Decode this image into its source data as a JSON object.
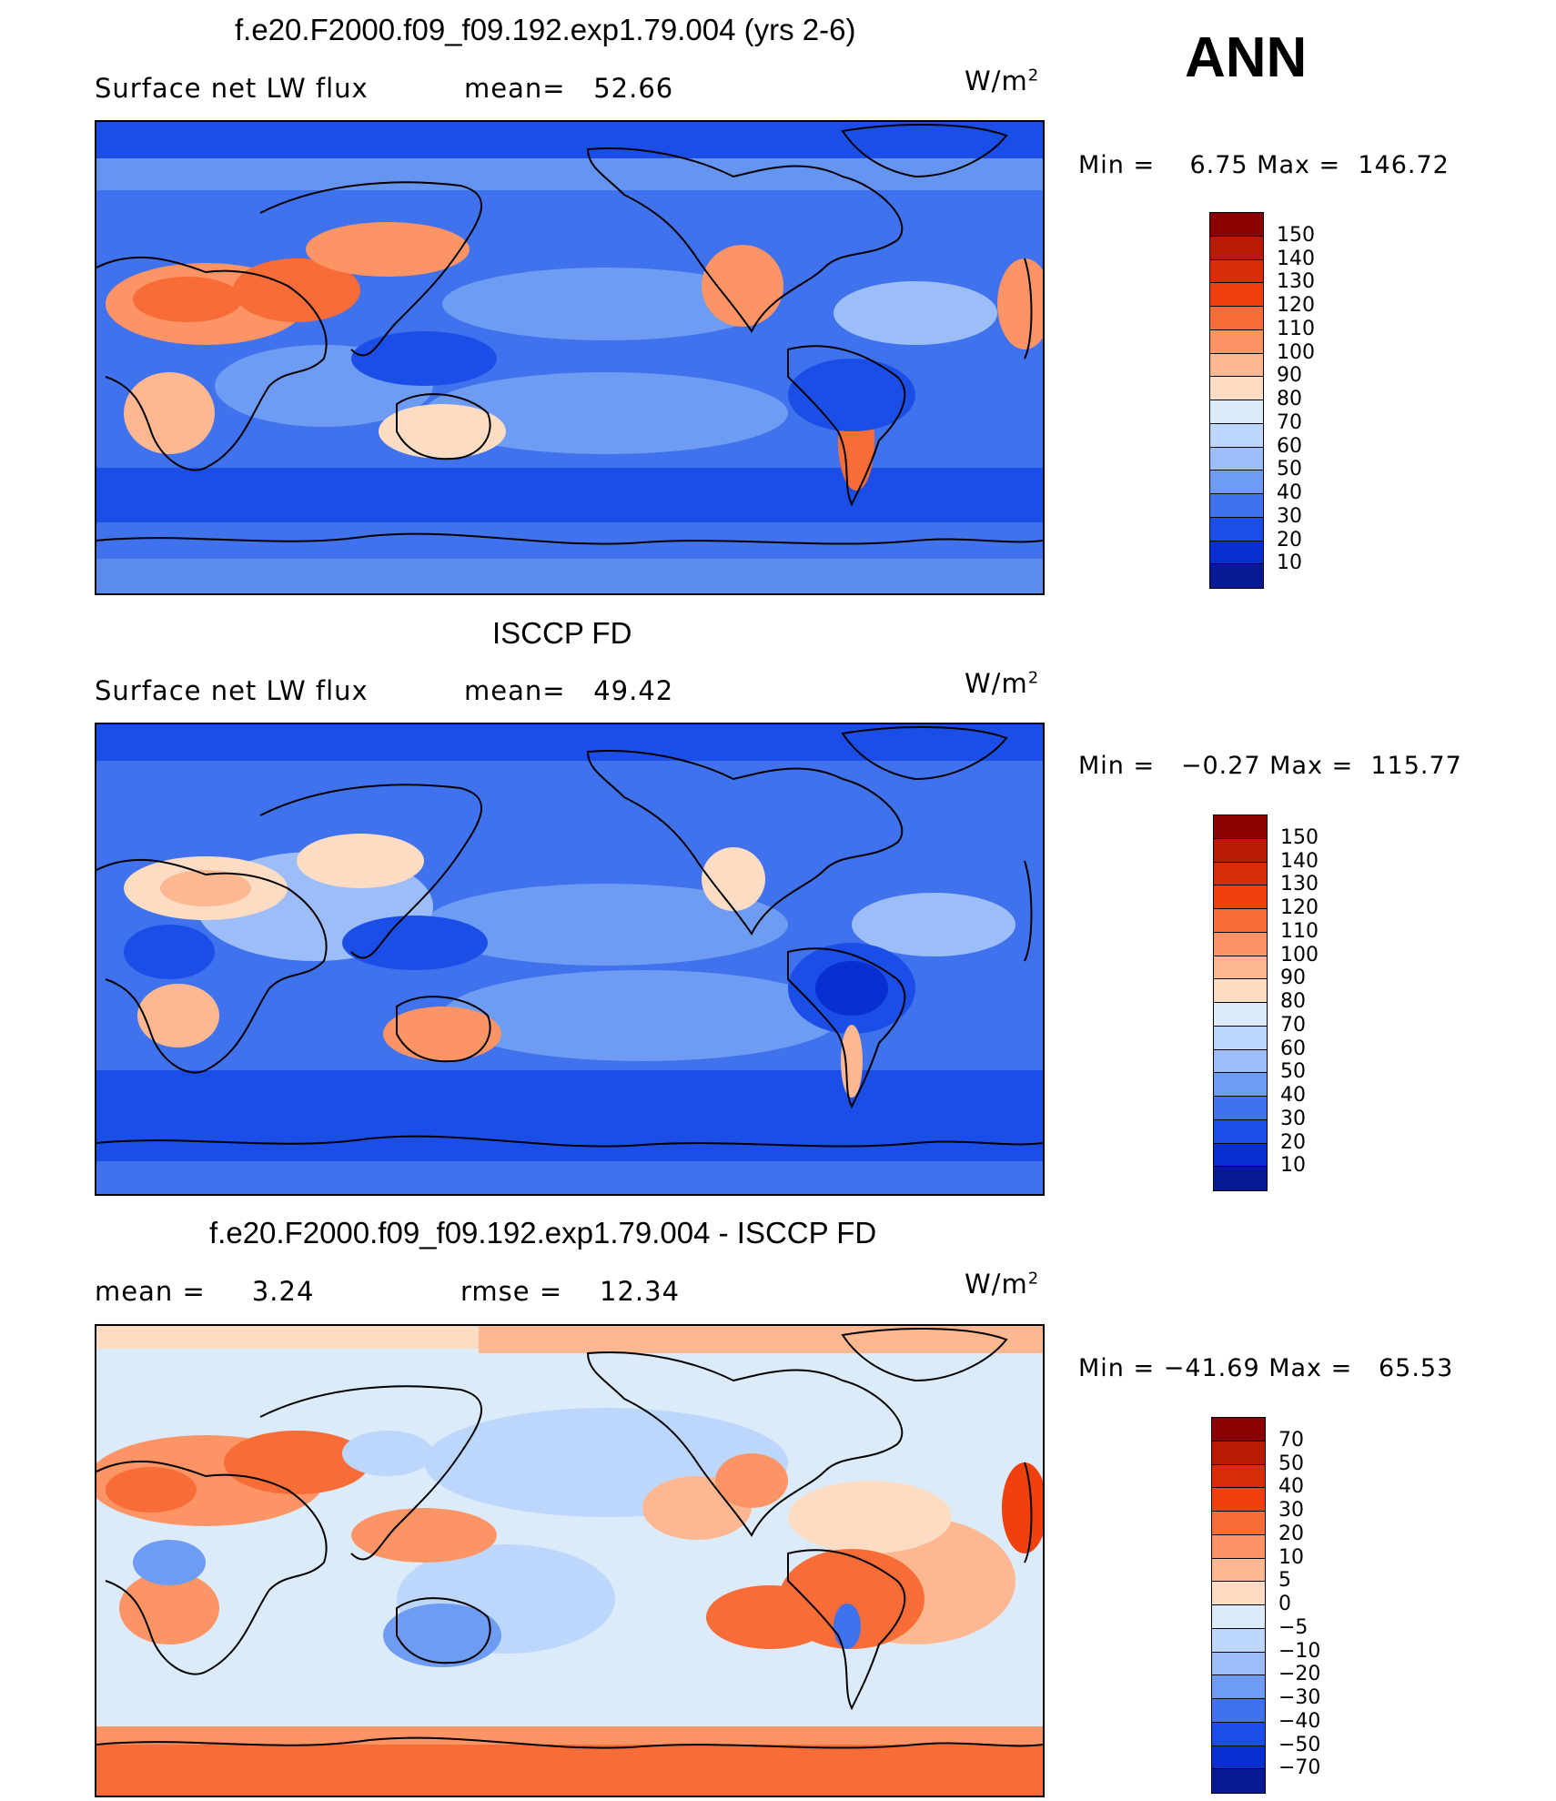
{
  "season": "ANN",
  "units": "W/m",
  "units_sup": "2",
  "panels": [
    {
      "title": "f.e20.F2000.f09_f09.192.exp1.79.004 (yrs 2-6)",
      "left_label": "Surface net LW flux",
      "mid_label": "mean=",
      "mid_value": "52.66",
      "stats": "Min =    6.75 Max =  146.72",
      "colorbar": [
        "150",
        "140",
        "130",
        "120",
        "110",
        "100",
        "90",
        "80",
        "70",
        "60",
        "50",
        "40",
        "30",
        "20",
        "10"
      ],
      "colors": [
        "#8b0000",
        "#b81b04",
        "#d72d07",
        "#f0400e",
        "#f86c38",
        "#fc9465",
        "#fdb892",
        "#fddcc4",
        "#dcebfa",
        "#bdd6fb",
        "#9cbdf7",
        "#6f9cf3",
        "#3f72ec",
        "#1b4ee6",
        "#0a2fd0",
        "#061a96"
      ]
    },
    {
      "title": "ISCCP FD",
      "left_label": "Surface net LW flux",
      "mid_label": "mean=",
      "mid_value": "49.42",
      "stats": "Min =   −0.27 Max =  115.77",
      "colorbar": [
        "150",
        "140",
        "130",
        "120",
        "110",
        "100",
        "90",
        "80",
        "70",
        "60",
        "50",
        "40",
        "30",
        "20",
        "10"
      ],
      "colors": [
        "#8b0000",
        "#b81b04",
        "#d72d07",
        "#f0400e",
        "#f86c38",
        "#fc9465",
        "#fdb892",
        "#fddcc4",
        "#dcebfa",
        "#bdd6fb",
        "#9cbdf7",
        "#6f9cf3",
        "#3f72ec",
        "#1b4ee6",
        "#0a2fd0",
        "#061a96"
      ]
    },
    {
      "title": "f.e20.F2000.f09_f09.192.exp1.79.004 - ISCCP FD",
      "left_label": "mean =",
      "left_value": "3.24",
      "mid_label": "rmse =",
      "mid_value": "12.34",
      "stats": "Min = −41.69 Max =   65.53",
      "colorbar": [
        "70",
        "50",
        "40",
        "30",
        "20",
        "10",
        "5",
        "0",
        "−5",
        "−10",
        "−20",
        "−30",
        "−40",
        "−50",
        "−70"
      ],
      "colors": [
        "#8b0000",
        "#b81b04",
        "#d72d07",
        "#f0400e",
        "#f86c38",
        "#fc9465",
        "#fdb892",
        "#fddcc4",
        "#dcebfa",
        "#bdd6fb",
        "#9cbdf7",
        "#6f9cf3",
        "#3f72ec",
        "#1b4ee6",
        "#0a2fd0",
        "#061a96"
      ]
    }
  ]
}
